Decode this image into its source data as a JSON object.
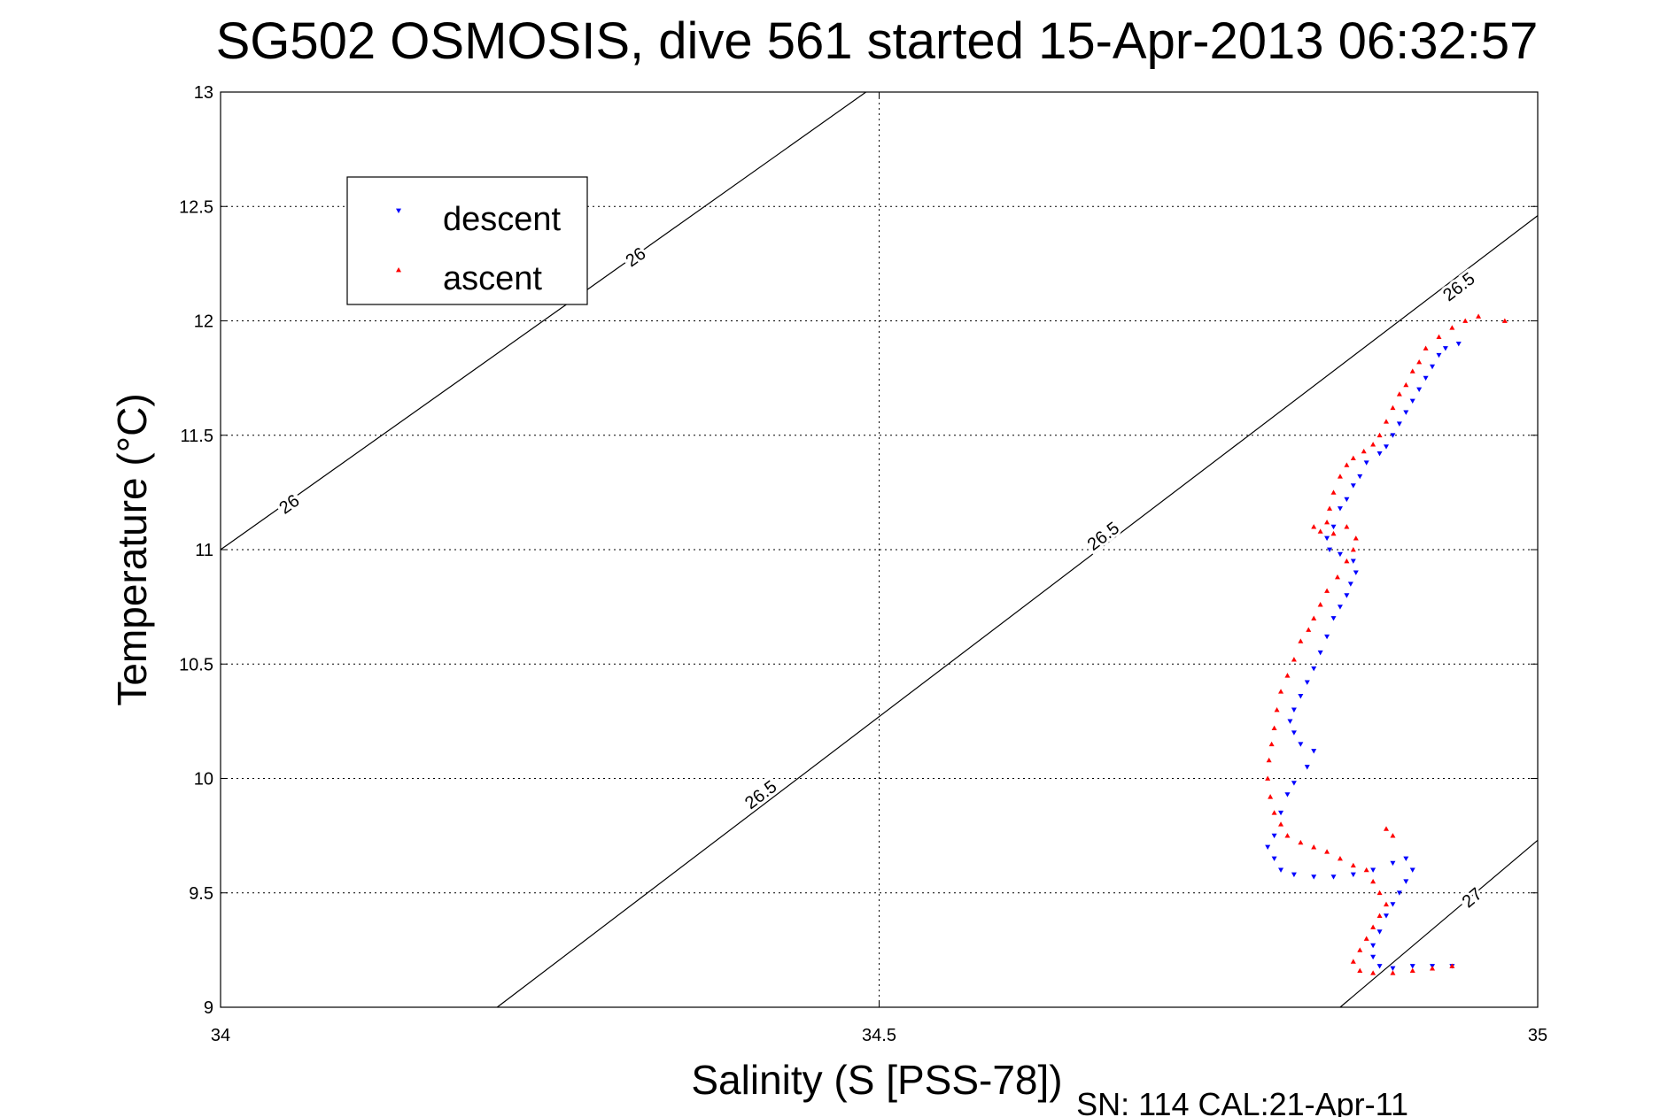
{
  "chart_data": {
    "type": "scatter",
    "title": "SG502 OSMOSIS, dive 561 started 15-Apr-2013 06:32:57",
    "xlabel": "Salinity (S [PSS-78])",
    "ylabel": "Temperature (°C)",
    "xlim": [
      34,
      35
    ],
    "ylim": [
      9,
      13
    ],
    "xticks": [
      34,
      34.5,
      35
    ],
    "xtick_labels": [
      "34",
      "34.5",
      "35"
    ],
    "yticks": [
      9,
      9.5,
      10,
      10.5,
      11,
      11.5,
      12,
      12.5,
      13
    ],
    "ytick_labels": [
      "9",
      "9.5",
      "10",
      "10.5",
      "11",
      "11.5",
      "12",
      "12.5",
      "13"
    ],
    "grid": true,
    "legend_position": "top-left",
    "footer": "SN: 114  CAL:21-Apr-11",
    "density_contours": [
      {
        "label": "26",
        "line": [
          [
            34.0,
            11.0
          ],
          [
            34.49,
            13.0
          ]
        ],
        "label_positions": [
          [
            34.052,
            11.2
          ],
          [
            34.315,
            12.28
          ]
        ]
      },
      {
        "label": "26.5",
        "line": [
          [
            34.21,
            9.0
          ],
          [
            35.0,
            12.46
          ]
        ],
        "label_positions": [
          [
            34.41,
            9.93
          ],
          [
            34.67,
            11.06
          ],
          [
            34.94,
            12.15
          ]
        ]
      },
      {
        "label": "27",
        "line": [
          [
            34.85,
            9.0
          ],
          [
            35.0,
            9.73
          ]
        ],
        "label_positions": [
          [
            34.95,
            9.48
          ]
        ]
      }
    ],
    "series": [
      {
        "name": "descent",
        "color": "#0000ff",
        "marker": "triangle-down",
        "points": [
          [
            34.94,
            11.9
          ],
          [
            34.93,
            11.88
          ],
          [
            34.925,
            11.85
          ],
          [
            34.92,
            11.8
          ],
          [
            34.915,
            11.75
          ],
          [
            34.91,
            11.7
          ],
          [
            34.905,
            11.65
          ],
          [
            34.9,
            11.6
          ],
          [
            34.895,
            11.55
          ],
          [
            34.89,
            11.5
          ],
          [
            34.885,
            11.45
          ],
          [
            34.88,
            11.42
          ],
          [
            34.87,
            11.38
          ],
          [
            34.865,
            11.32
          ],
          [
            34.86,
            11.28
          ],
          [
            34.855,
            11.22
          ],
          [
            34.85,
            11.18
          ],
          [
            34.845,
            11.1
          ],
          [
            34.84,
            11.05
          ],
          [
            34.842,
            11.0
          ],
          [
            34.85,
            10.98
          ],
          [
            34.86,
            10.95
          ],
          [
            34.862,
            10.9
          ],
          [
            34.858,
            10.85
          ],
          [
            34.855,
            10.8
          ],
          [
            34.85,
            10.75
          ],
          [
            34.845,
            10.7
          ],
          [
            34.84,
            10.62
          ],
          [
            34.835,
            10.55
          ],
          [
            34.83,
            10.48
          ],
          [
            34.825,
            10.42
          ],
          [
            34.82,
            10.36
          ],
          [
            34.815,
            10.3
          ],
          [
            34.812,
            10.25
          ],
          [
            34.815,
            10.2
          ],
          [
            34.82,
            10.15
          ],
          [
            34.83,
            10.12
          ],
          [
            34.825,
            10.05
          ],
          [
            34.815,
            9.98
          ],
          [
            34.81,
            9.93
          ],
          [
            34.805,
            9.85
          ],
          [
            34.8,
            9.75
          ],
          [
            34.795,
            9.7
          ],
          [
            34.8,
            9.65
          ],
          [
            34.805,
            9.6
          ],
          [
            34.815,
            9.58
          ],
          [
            34.83,
            9.57
          ],
          [
            34.845,
            9.57
          ],
          [
            34.86,
            9.58
          ],
          [
            34.875,
            9.6
          ],
          [
            34.89,
            9.63
          ],
          [
            34.9,
            9.65
          ],
          [
            34.905,
            9.6
          ],
          [
            34.9,
            9.55
          ],
          [
            34.895,
            9.5
          ],
          [
            34.89,
            9.45
          ],
          [
            34.885,
            9.4
          ],
          [
            34.88,
            9.33
          ],
          [
            34.875,
            9.27
          ],
          [
            34.875,
            9.22
          ],
          [
            34.88,
            9.18
          ],
          [
            34.89,
            9.17
          ],
          [
            34.905,
            9.18
          ],
          [
            34.92,
            9.18
          ],
          [
            34.935,
            9.18
          ]
        ]
      },
      {
        "name": "ascent",
        "color": "#ff0000",
        "marker": "triangle-up",
        "points": [
          [
            34.955,
            12.02
          ],
          [
            34.945,
            12.0
          ],
          [
            34.935,
            11.97
          ],
          [
            34.925,
            11.93
          ],
          [
            34.915,
            11.88
          ],
          [
            34.91,
            11.82
          ],
          [
            34.905,
            11.78
          ],
          [
            34.9,
            11.72
          ],
          [
            34.895,
            11.68
          ],
          [
            34.89,
            11.62
          ],
          [
            34.885,
            11.56
          ],
          [
            34.88,
            11.5
          ],
          [
            34.875,
            11.46
          ],
          [
            34.868,
            11.43
          ],
          [
            34.86,
            11.4
          ],
          [
            34.855,
            11.37
          ],
          [
            34.85,
            11.32
          ],
          [
            34.845,
            11.25
          ],
          [
            34.842,
            11.18
          ],
          [
            34.84,
            11.12
          ],
          [
            34.83,
            11.1
          ],
          [
            34.835,
            11.08
          ],
          [
            34.845,
            11.07
          ],
          [
            34.855,
            11.1
          ],
          [
            34.862,
            11.05
          ],
          [
            34.86,
            11.0
          ],
          [
            34.855,
            10.95
          ],
          [
            34.848,
            10.88
          ],
          [
            34.84,
            10.82
          ],
          [
            34.835,
            10.76
          ],
          [
            34.83,
            10.7
          ],
          [
            34.826,
            10.65
          ],
          [
            34.82,
            10.6
          ],
          [
            34.815,
            10.52
          ],
          [
            34.81,
            10.45
          ],
          [
            34.805,
            10.38
          ],
          [
            34.802,
            10.3
          ],
          [
            34.8,
            10.22
          ],
          [
            34.798,
            10.15
          ],
          [
            34.796,
            10.08
          ],
          [
            34.795,
            10.0
          ],
          [
            34.797,
            9.92
          ],
          [
            34.8,
            9.85
          ],
          [
            34.805,
            9.8
          ],
          [
            34.81,
            9.75
          ],
          [
            34.82,
            9.72
          ],
          [
            34.83,
            9.7
          ],
          [
            34.84,
            9.68
          ],
          [
            34.85,
            9.65
          ],
          [
            34.86,
            9.62
          ],
          [
            34.87,
            9.6
          ],
          [
            34.875,
            9.55
          ],
          [
            34.88,
            9.5
          ],
          [
            34.885,
            9.45
          ],
          [
            34.88,
            9.4
          ],
          [
            34.875,
            9.35
          ],
          [
            34.87,
            9.3
          ],
          [
            34.865,
            9.25
          ],
          [
            34.86,
            9.2
          ],
          [
            34.865,
            9.16
          ],
          [
            34.875,
            9.15
          ],
          [
            34.89,
            9.15
          ],
          [
            34.905,
            9.16
          ],
          [
            34.92,
            9.17
          ],
          [
            34.935,
            9.18
          ],
          [
            34.89,
            9.75
          ],
          [
            34.885,
            9.78
          ],
          [
            34.975,
            12.0
          ]
        ]
      }
    ]
  }
}
